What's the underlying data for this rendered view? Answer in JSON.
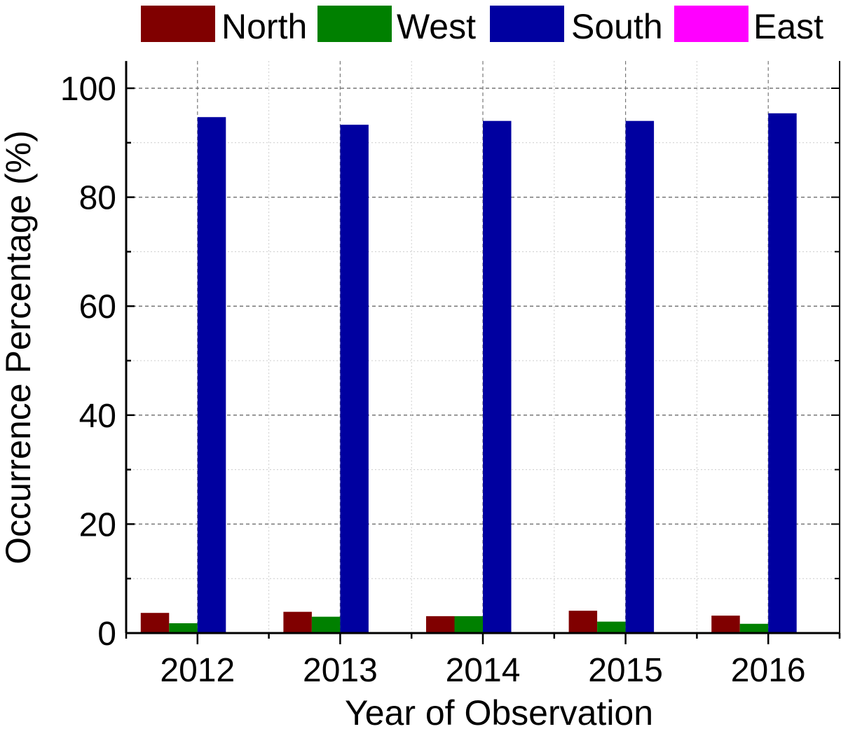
{
  "chart_data": {
    "type": "bar",
    "title": "",
    "xlabel": "Year of Observation",
    "ylabel": "Occurrence Percentage (%)",
    "categories": [
      "2012",
      "2013",
      "2014",
      "2015",
      "2016"
    ],
    "ylim": [
      0,
      105
    ],
    "yticks": [
      0,
      20,
      40,
      60,
      80,
      100
    ],
    "grid": true,
    "legend_position": "top",
    "series": [
      {
        "name": "North",
        "color": "#800000",
        "values": [
          3.7,
          3.9,
          3.1,
          4.1,
          3.2
        ]
      },
      {
        "name": "West",
        "color": "#008000",
        "values": [
          1.8,
          3.0,
          3.1,
          2.1,
          1.7
        ]
      },
      {
        "name": "South",
        "color": "#0000A0",
        "values": [
          94.7,
          93.3,
          94.0,
          94.0,
          95.4
        ]
      },
      {
        "name": "East",
        "color": "#FF00FF",
        "values": [
          0,
          0,
          0,
          0,
          0
        ]
      }
    ]
  }
}
